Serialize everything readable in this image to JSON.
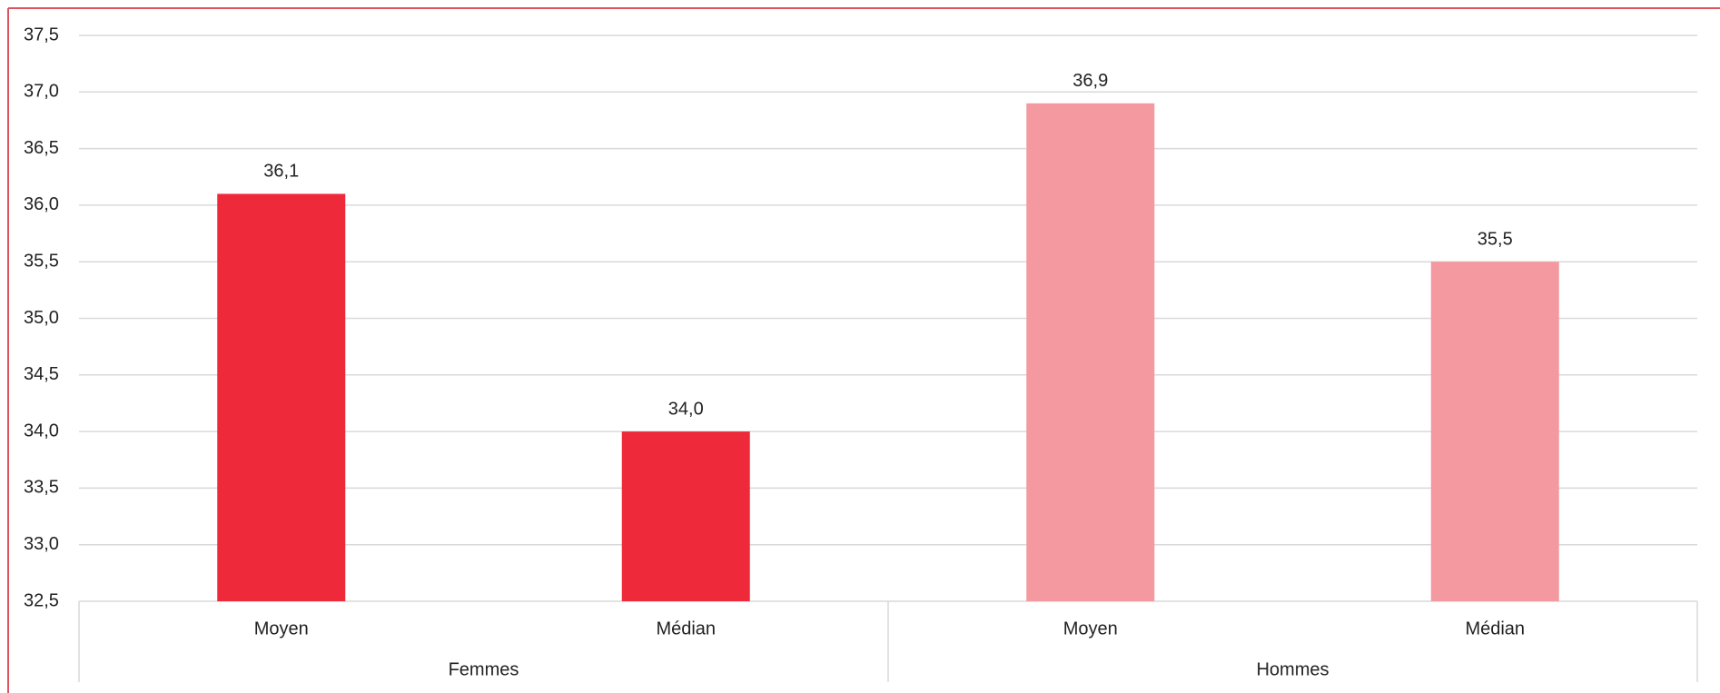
{
  "chart_data": {
    "type": "bar",
    "groups": [
      {
        "name": "Femmes",
        "color": "#ee2939",
        "categories": [
          "Moyen",
          "Médian"
        ],
        "values": [
          36.1,
          34.0
        ],
        "value_labels": [
          "36,1",
          "34,0"
        ]
      },
      {
        "name": "Hommes",
        "color": "#f4999f",
        "categories": [
          "Moyen",
          "Médian"
        ],
        "values": [
          36.9,
          35.5
        ],
        "value_labels": [
          "36,9",
          "35,5"
        ]
      }
    ],
    "ylim": [
      32.5,
      37.5
    ],
    "yticks": [
      {
        "value": 32.5,
        "label": "32,5"
      },
      {
        "value": 33,
        "label": "33,0"
      },
      {
        "value": 33.5,
        "label": "33,5"
      },
      {
        "value": 34,
        "label": "34,0"
      },
      {
        "value": 34.5,
        "label": "34,5"
      },
      {
        "value": 35,
        "label": "35,0"
      },
      {
        "value": 35.5,
        "label": "35,5"
      },
      {
        "value": 36,
        "label": "36,0"
      },
      {
        "value": 36.5,
        "label": "36,5"
      },
      {
        "value": 37,
        "label": "37,0"
      },
      {
        "value": 37.5,
        "label": "37,5"
      }
    ],
    "grid": true
  }
}
